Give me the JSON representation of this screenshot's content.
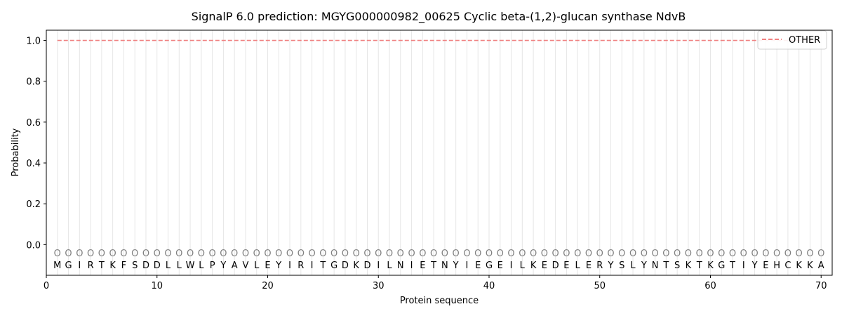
{
  "chart_data": {
    "type": "line",
    "title": "SignalP 6.0 prediction: MGYG000000982_00625 Cyclic beta-(1,2)-glucan synthase NdvB",
    "xlabel": "Protein sequence",
    "ylabel": "Probability",
    "xlim": [
      0,
      71
    ],
    "ylim": [
      -0.15,
      1.05
    ],
    "x_ticks": [
      0,
      10,
      20,
      30,
      40,
      50,
      60,
      70
    ],
    "y_ticks": [
      0.0,
      0.2,
      0.4,
      0.6,
      0.8,
      1.0
    ],
    "y_tick_labels": [
      "0.0",
      "0.2",
      "0.4",
      "0.6",
      "0.8",
      "1.0"
    ],
    "grid": "vertical lines at each residue",
    "legend_position": "top-right",
    "sequence": [
      "M",
      "G",
      "I",
      "R",
      "T",
      "K",
      "F",
      "S",
      "D",
      "D",
      "L",
      "L",
      "W",
      "L",
      "P",
      "Y",
      "A",
      "V",
      "L",
      "E",
      "Y",
      "I",
      "R",
      "I",
      "T",
      "G",
      "D",
      "K",
      "D",
      "I",
      "L",
      "N",
      "I",
      "E",
      "T",
      "N",
      "Y",
      "I",
      "E",
      "G",
      "E",
      "I",
      "L",
      "K",
      "E",
      "D",
      "E",
      "L",
      "E",
      "R",
      "Y",
      "S",
      "L",
      "Y",
      "N",
      "T",
      "S",
      "K",
      "T",
      "K",
      "G",
      "T",
      "I",
      "Y",
      "E",
      "H",
      "C",
      "K",
      "K",
      "A"
    ],
    "predicted_labels": [
      "O",
      "O",
      "O",
      "O",
      "O",
      "O",
      "O",
      "O",
      "O",
      "O",
      "O",
      "O",
      "O",
      "O",
      "O",
      "O",
      "O",
      "O",
      "O",
      "O",
      "O",
      "O",
      "O",
      "O",
      "O",
      "O",
      "O",
      "O",
      "O",
      "O",
      "O",
      "O",
      "O",
      "O",
      "O",
      "O",
      "O",
      "O",
      "O",
      "O",
      "O",
      "O",
      "O",
      "O",
      "O",
      "O",
      "O",
      "O",
      "O",
      "O",
      "O",
      "O",
      "O",
      "O",
      "O",
      "O",
      "O",
      "O",
      "O",
      "O",
      "O",
      "O",
      "O",
      "O",
      "O",
      "O",
      "O",
      "O",
      "O",
      "O"
    ],
    "series": [
      {
        "name": "OTHER",
        "color": "#f08080",
        "style": "dashed",
        "x": [
          1,
          70
        ],
        "values": [
          1.0,
          1.0
        ]
      }
    ]
  }
}
